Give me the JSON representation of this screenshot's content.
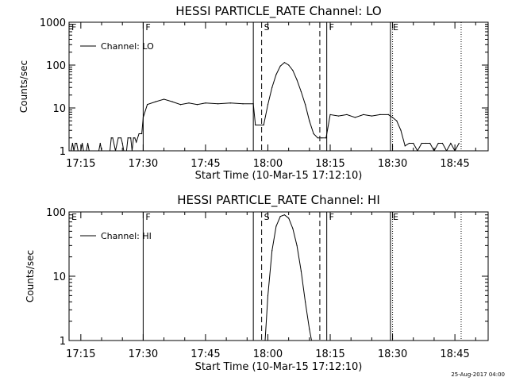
{
  "chart_data": [
    {
      "type": "line",
      "title": "HESSI PARTICLE_RATE Channel: LO",
      "xlabel": "Start Time (10-Mar-15 17:12:10)",
      "ylabel": "Counts/sec",
      "yscale": "log",
      "xlim": [
        "17:12:10",
        "18:53:00"
      ],
      "ylim": [
        1,
        1000
      ],
      "x_tick_labels": [
        "17:15",
        "17:30",
        "17:45",
        "18:00",
        "18:15",
        "18:30",
        "18:45"
      ],
      "y_tick_labels": [
        "1",
        "10",
        "100",
        "1000"
      ],
      "legend": {
        "position": "top-left",
        "entries": [
          "Channel: LO"
        ]
      },
      "markers": [
        {
          "label": "F",
          "time": "17:12:10",
          "style": "solid"
        },
        {
          "label": "F",
          "time": "17:30:00",
          "style": "solid"
        },
        {
          "label": "",
          "time": "17:56:30",
          "style": "solid"
        },
        {
          "label": "S",
          "time": "17:58:30",
          "style": "dashed"
        },
        {
          "label": "",
          "time": "18:12:30",
          "style": "dashed"
        },
        {
          "label": "F",
          "time": "18:14:10",
          "style": "solid"
        },
        {
          "label": "E",
          "time": "18:29:30",
          "style": "solid"
        },
        {
          "label": "",
          "time": "18:30:00",
          "style": "dotted"
        },
        {
          "label": "",
          "time": "18:46:30",
          "style": "dotted"
        }
      ],
      "series": [
        {
          "points": [
            [
              "17:12:40",
              1
            ],
            [
              "17:13:00",
              1.5
            ],
            [
              "17:13:20",
              1
            ],
            [
              "17:13:40",
              1.5
            ],
            [
              "17:14:00",
              1.5
            ],
            [
              "17:14:20",
              1
            ],
            [
              "17:15:00",
              1
            ],
            [
              "17:15:20",
              1.5
            ],
            [
              "17:15:40",
              1
            ],
            [
              "17:16:20",
              1
            ],
            [
              "17:16:40",
              1.5
            ],
            [
              "17:17:00",
              1
            ],
            [
              "17:19:20",
              1
            ],
            [
              "17:19:40",
              1.5
            ],
            [
              "17:20:00",
              1
            ],
            [
              "17:22:00",
              1
            ],
            [
              "17:22:20",
              2
            ],
            [
              "17:22:40",
              2
            ],
            [
              "17:23:20",
              1
            ],
            [
              "17:24:00",
              2
            ],
            [
              "17:24:40",
              2
            ],
            [
              "17:25:00",
              1.5
            ],
            [
              "17:25:20",
              1
            ],
            [
              "17:26:00",
              1
            ],
            [
              "17:26:20",
              2
            ],
            [
              "17:27:00",
              2
            ],
            [
              "17:27:20",
              1
            ],
            [
              "17:27:40",
              2
            ],
            [
              "17:28:00",
              2
            ],
            [
              "17:28:20",
              1.6
            ],
            [
              "17:29:00",
              2.5
            ],
            [
              "17:29:40",
              2.5
            ],
            [
              "17:30:00",
              6
            ],
            [
              "17:31:00",
              12
            ],
            [
              "17:33:00",
              14
            ],
            [
              "17:35:00",
              16
            ],
            [
              "17:37:00",
              14
            ],
            [
              "17:39:00",
              12
            ],
            [
              "17:41:00",
              13
            ],
            [
              "17:43:00",
              12
            ],
            [
              "17:45:00",
              13
            ],
            [
              "17:48:00",
              12.5
            ],
            [
              "17:51:00",
              13
            ],
            [
              "17:54:00",
              12.5
            ],
            [
              "17:56:30",
              12.5
            ],
            [
              "17:57:00",
              4
            ],
            [
              "17:59:00",
              4
            ],
            [
              "18:00:00",
              12
            ],
            [
              "18:01:00",
              30
            ],
            [
              "18:02:00",
              60
            ],
            [
              "18:03:00",
              95
            ],
            [
              "18:04:00",
              115
            ],
            [
              "18:05:00",
              100
            ],
            [
              "18:06:00",
              75
            ],
            [
              "18:07:00",
              45
            ],
            [
              "18:08:00",
              24
            ],
            [
              "18:09:00",
              12
            ],
            [
              "18:10:00",
              5
            ],
            [
              "18:11:00",
              2.5
            ],
            [
              "18:12:00",
              2
            ],
            [
              "18:13:00",
              2
            ],
            [
              "18:14:00",
              2
            ],
            [
              "18:15:00",
              7
            ],
            [
              "18:17:00",
              6.5
            ],
            [
              "18:19:00",
              7
            ],
            [
              "18:21:00",
              6
            ],
            [
              "18:23:00",
              7
            ],
            [
              "18:25:00",
              6.5
            ],
            [
              "18:27:00",
              7
            ],
            [
              "18:29:00",
              7
            ],
            [
              "18:30:00",
              6
            ],
            [
              "18:31:00",
              5
            ],
            [
              "18:32:00",
              3
            ],
            [
              "18:33:00",
              1.3
            ],
            [
              "18:34:00",
              1.5
            ],
            [
              "18:35:00",
              1.5
            ],
            [
              "18:36:00",
              1
            ],
            [
              "18:37:00",
              1.5
            ],
            [
              "18:38:00",
              1.5
            ],
            [
              "18:39:00",
              1.5
            ],
            [
              "18:40:00",
              1
            ],
            [
              "18:41:00",
              1.5
            ],
            [
              "18:42:00",
              1.5
            ],
            [
              "18:43:00",
              1
            ],
            [
              "18:44:00",
              1.5
            ],
            [
              "18:45:00",
              1
            ],
            [
              "18:46:00",
              1.5
            ]
          ]
        }
      ]
    },
    {
      "type": "line",
      "title": "HESSI PARTICLE_RATE Channel: HI",
      "xlabel": "Start Time (10-Mar-15 17:12:10)",
      "ylabel": "Counts/sec",
      "yscale": "log",
      "xlim": [
        "17:12:10",
        "18:53:00"
      ],
      "ylim": [
        1,
        100
      ],
      "x_tick_labels": [
        "17:15",
        "17:30",
        "17:45",
        "18:00",
        "18:15",
        "18:30",
        "18:45"
      ],
      "y_tick_labels": [
        "1",
        "10",
        "100"
      ],
      "legend": {
        "position": "top-left",
        "entries": [
          "Channel: HI"
        ]
      },
      "markers": [
        {
          "label": "E",
          "time": "17:12:10",
          "style": "solid"
        },
        {
          "label": "F",
          "time": "17:30:00",
          "style": "solid"
        },
        {
          "label": "",
          "time": "17:56:30",
          "style": "solid"
        },
        {
          "label": "S",
          "time": "17:58:30",
          "style": "dashed"
        },
        {
          "label": "",
          "time": "18:12:30",
          "style": "dashed"
        },
        {
          "label": "F",
          "time": "18:14:10",
          "style": "solid"
        },
        {
          "label": "E",
          "time": "18:29:30",
          "style": "solid"
        },
        {
          "label": "",
          "time": "18:30:00",
          "style": "dotted"
        },
        {
          "label": "",
          "time": "18:46:30",
          "style": "dotted"
        }
      ],
      "series": [
        {
          "points": [
            [
              "17:59:20",
              1
            ],
            [
              "18:00:00",
              5
            ],
            [
              "18:01:00",
              25
            ],
            [
              "18:02:00",
              60
            ],
            [
              "18:03:00",
              85
            ],
            [
              "18:04:00",
              90
            ],
            [
              "18:05:00",
              80
            ],
            [
              "18:06:00",
              55
            ],
            [
              "18:07:00",
              30
            ],
            [
              "18:08:00",
              12
            ],
            [
              "18:09:00",
              4
            ],
            [
              "18:10:00",
              1.5
            ],
            [
              "18:10:30",
              1
            ]
          ]
        }
      ]
    }
  ],
  "footer": {
    "timestamp": "25-Aug-2017 04:00"
  }
}
